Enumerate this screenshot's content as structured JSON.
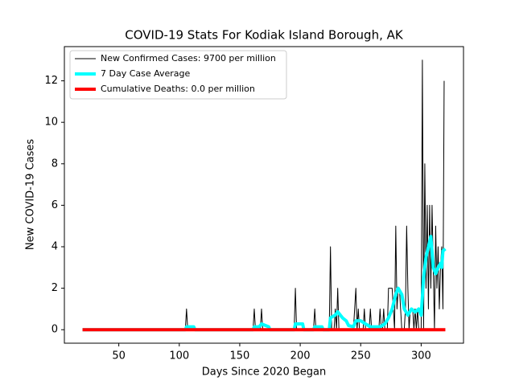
{
  "chart_data": {
    "type": "line",
    "title": "COVID-19 Stats For Kodiak Island Borough, AK",
    "xlabel": "Days Since 2020 Began",
    "ylabel": "New COVID-19 Cases",
    "xlim": [
      5,
      335
    ],
    "xticks": [
      50,
      100,
      150,
      200,
      250,
      300
    ],
    "ylim": [
      -0.65,
      13.65
    ],
    "yticks": [
      0,
      2,
      4,
      6,
      8,
      10,
      12
    ],
    "legend": "upper left",
    "series": [
      {
        "name": "New Confirmed Cases: 9700 per million",
        "color": "#000000",
        "width": 1,
        "x": [
          20,
          105,
          106,
          107,
          161,
          162,
          163,
          167,
          168,
          169,
          195,
          196,
          197,
          211,
          212,
          213,
          224,
          225,
          226,
          228,
          229,
          230,
          231,
          232,
          244,
          245,
          246,
          247,
          248,
          249,
          252,
          253,
          254,
          257,
          258,
          259,
          265,
          266,
          267,
          268,
          269,
          270,
          272,
          273,
          276,
          277,
          278,
          279,
          280,
          281,
          282,
          284,
          286,
          287,
          288,
          289,
          290,
          291,
          293,
          294,
          295,
          296,
          297,
          298,
          300,
          301,
          302,
          303,
          304,
          305,
          306,
          307,
          308,
          309,
          310,
          311,
          312,
          313,
          314,
          315,
          316,
          317,
          318,
          319
        ],
        "values": [
          0,
          0,
          1,
          0,
          0,
          1,
          0,
          0,
          1,
          0,
          0,
          2,
          0,
          0,
          1,
          0,
          0,
          4,
          0,
          0,
          1,
          0,
          2,
          0,
          0,
          1,
          2,
          0,
          1,
          0,
          0,
          1,
          0,
          0,
          1,
          0,
          0,
          1,
          0,
          0,
          1,
          0,
          0,
          2,
          2,
          1,
          0,
          5,
          1,
          2,
          2,
          0,
          0,
          1,
          5,
          2,
          0,
          1,
          1,
          0,
          1,
          0,
          1,
          0,
          0,
          13,
          0,
          8,
          2,
          6,
          1,
          6,
          2,
          6,
          3,
          0,
          5,
          2,
          4,
          1,
          3,
          4,
          1,
          12
        ]
      },
      {
        "name": "7 Day Case Average",
        "color": "#00ffff",
        "width": 4,
        "x": [
          20,
          105,
          106,
          112,
          113,
          161,
          162,
          166,
          168,
          174,
          175,
          195,
          196,
          202,
          203,
          211,
          212,
          218,
          219,
          224,
          225,
          229,
          231,
          235,
          238,
          240,
          244,
          246,
          250,
          254,
          258,
          266,
          270,
          273,
          276,
          279,
          281,
          284,
          286,
          289,
          292,
          295,
          298,
          300,
          302,
          304,
          306,
          308,
          310,
          312,
          314,
          316,
          317,
          318,
          320
        ],
        "values": [
          0,
          0,
          0.14,
          0.14,
          0,
          0,
          0.14,
          0.14,
          0.28,
          0.14,
          0,
          0,
          0.28,
          0.28,
          0,
          0,
          0.14,
          0.14,
          0,
          0,
          0.57,
          0.71,
          0.86,
          0.57,
          0.43,
          0.2,
          0.14,
          0.43,
          0.43,
          0.28,
          0.14,
          0.14,
          0.28,
          0.57,
          1.0,
          1.7,
          2.0,
          1.7,
          1.0,
          0.7,
          1.0,
          0.85,
          1.0,
          0.7,
          2.5,
          3.5,
          4.0,
          4.5,
          3.0,
          2.7,
          3.0,
          3.2,
          3.0,
          3.8,
          3.9
        ]
      },
      {
        "name": "Cumulative Deaths: 0.0 per million",
        "color": "#ff0000",
        "width": 4,
        "x": [
          20,
          320
        ],
        "values": [
          0,
          0
        ]
      }
    ]
  }
}
